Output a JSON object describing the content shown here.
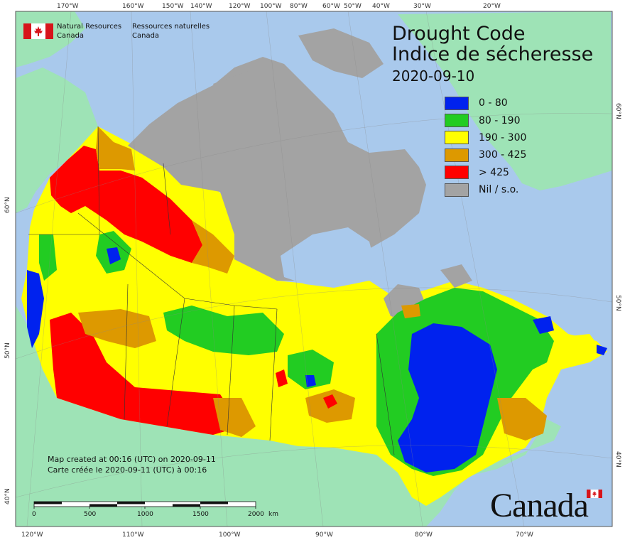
{
  "map": {
    "title_en": "Drought Code",
    "title_fr": "Indice de sécheresse",
    "date": "2020-09-10",
    "org_en": [
      "Natural Resources",
      "Canada"
    ],
    "org_fr": [
      "Ressources naturelles",
      "Canada"
    ],
    "legend": [
      {
        "label": "0 - 80",
        "color": "#0022ee"
      },
      {
        "label": "80 - 190",
        "color": "#22cc22"
      },
      {
        "label": "190 - 300",
        "color": "#ffff00"
      },
      {
        "label": "300 - 425",
        "color": "#dd9900"
      },
      {
        "label": "> 425",
        "color": "#ff0000"
      },
      {
        "label": "Nil / s.o.",
        "color": "#a3a3a3"
      }
    ],
    "credit_en": "Map created at 00:16 (UTC) on 2020-09-11",
    "credit_fr": "Carte créée le 2020-09-11 (UTC) à 00:16",
    "scale": {
      "labels": [
        "0",
        "500",
        "1000",
        "1500",
        "2000"
      ],
      "unit": "km"
    },
    "wordmark": "Canada",
    "top_ticks": [
      "170°W",
      "160°W",
      "150°W",
      "140°W",
      "120°W",
      "100°W",
      "80°W",
      "60°W",
      "50°W",
      "40°W",
      "30°W",
      "20°W"
    ],
    "bottom_ticks": [
      "120°W",
      "110°W",
      "100°W",
      "90°W",
      "80°W",
      "70°W"
    ],
    "left_ticks": [
      "60°N",
      "50°N",
      "40°N"
    ],
    "right_ticks": [
      "60°N",
      "50°N",
      "40°N"
    ],
    "colors": {
      "ocean": "#a9c9ec",
      "land": "#9ee3b6",
      "frame": "#555555"
    }
  }
}
